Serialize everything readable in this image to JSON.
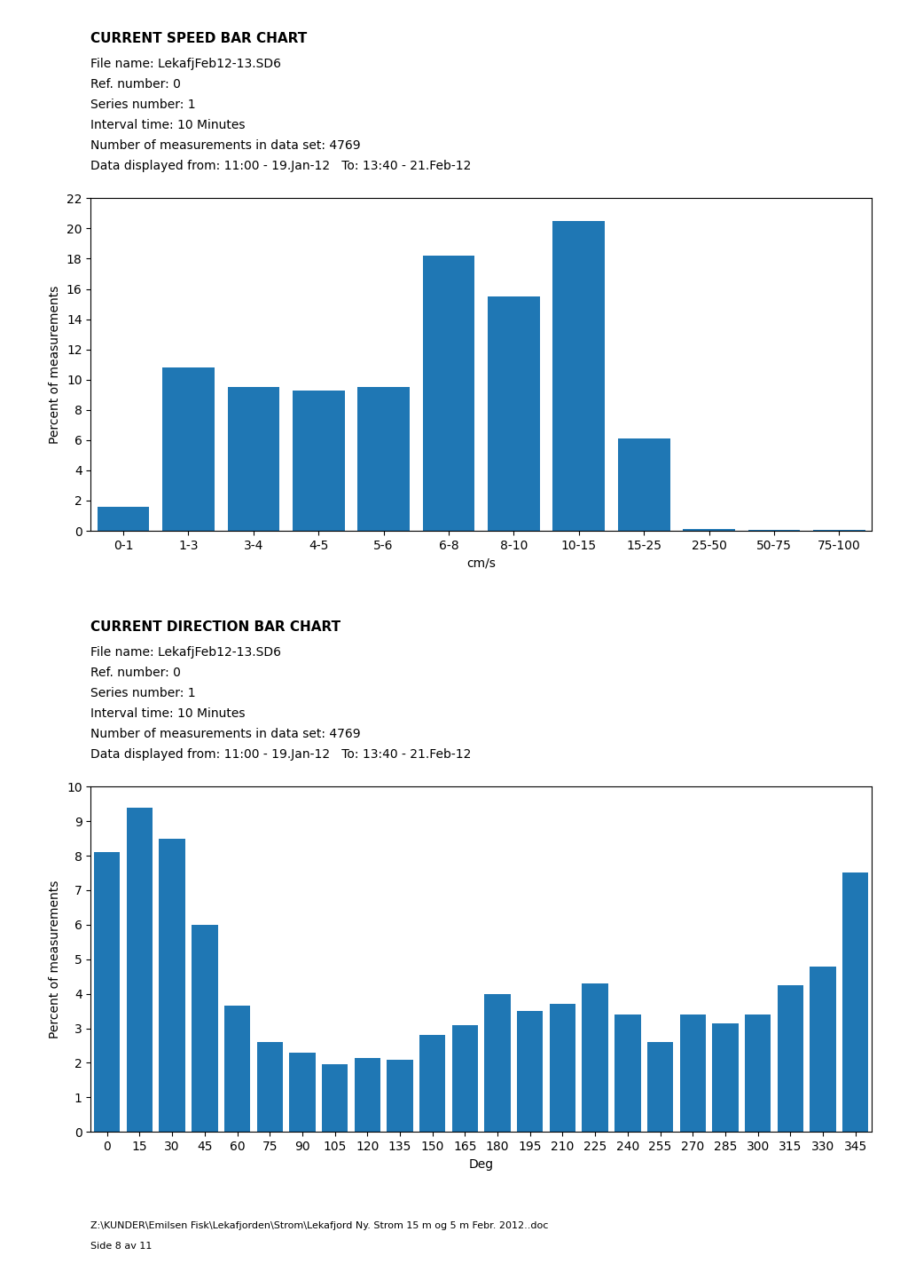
{
  "chart_data": [
    {
      "type": "bar",
      "title": "CURRENT SPEED BAR CHART",
      "annotations": [
        "File name: LekafjFeb12-13.SD6",
        "Ref. number: 0",
        "Series number: 1",
        "Interval time: 10 Minutes",
        "Number of measurements in data set: 4769",
        "Data displayed from: 11:00 - 19.Jan-12   To: 13:40 - 21.Feb-12"
      ],
      "y_label": "Percent of measurements",
      "x_label": "cm/s",
      "categories": [
        "0-1",
        "1-3",
        "3-4",
        "4-5",
        "5-6",
        "6-8",
        "8-10",
        "10-15",
        "15-25",
        "25-50",
        "50-75",
        "75-100"
      ],
      "values": [
        1.6,
        10.8,
        9.5,
        9.3,
        9.5,
        18.2,
        15.5,
        20.5,
        6.1,
        0.1,
        0.05,
        0.05
      ],
      "ylim": [
        0,
        22
      ],
      "yticks": [
        0,
        2,
        4,
        6,
        8,
        10,
        12,
        14,
        16,
        18,
        20,
        22
      ],
      "grid": false
    },
    {
      "type": "bar",
      "title": "CURRENT DIRECTION BAR CHART",
      "annotations": [
        "File name: LekafjFeb12-13.SD6",
        "Ref. number: 0",
        "Series number: 1",
        "Interval time: 10 Minutes",
        "Number of measurements in data set: 4769",
        "Data displayed from: 11:00 - 19.Jan-12   To: 13:40 - 21.Feb-12"
      ],
      "y_label": "Percent of measurements",
      "x_label": "Deg",
      "categories": [
        "0",
        "15",
        "30",
        "45",
        "60",
        "75",
        "90",
        "105",
        "120",
        "135",
        "150",
        "165",
        "180",
        "195",
        "210",
        "225",
        "240",
        "255",
        "270",
        "285",
        "300",
        "315",
        "330",
        "345"
      ],
      "values": [
        8.1,
        9.4,
        8.5,
        6.0,
        3.65,
        2.6,
        2.3,
        1.95,
        2.15,
        2.1,
        2.8,
        3.1,
        4.0,
        3.5,
        3.7,
        4.3,
        3.4,
        2.6,
        3.4,
        3.15,
        3.4,
        4.25,
        4.8,
        7.5
      ],
      "ylim": [
        0,
        10
      ],
      "yticks": [
        0,
        1,
        2,
        3,
        4,
        5,
        6,
        7,
        8,
        9,
        10
      ],
      "grid": false
    }
  ],
  "annotations": [
    "Z:\\KUNDER\\Emilsen Fisk\\Lekafjorden\\Strom\\Lekafjord Ny. Strom 15 m og 5 m Febr. 2012..doc",
    "Side 8 av 11"
  ]
}
